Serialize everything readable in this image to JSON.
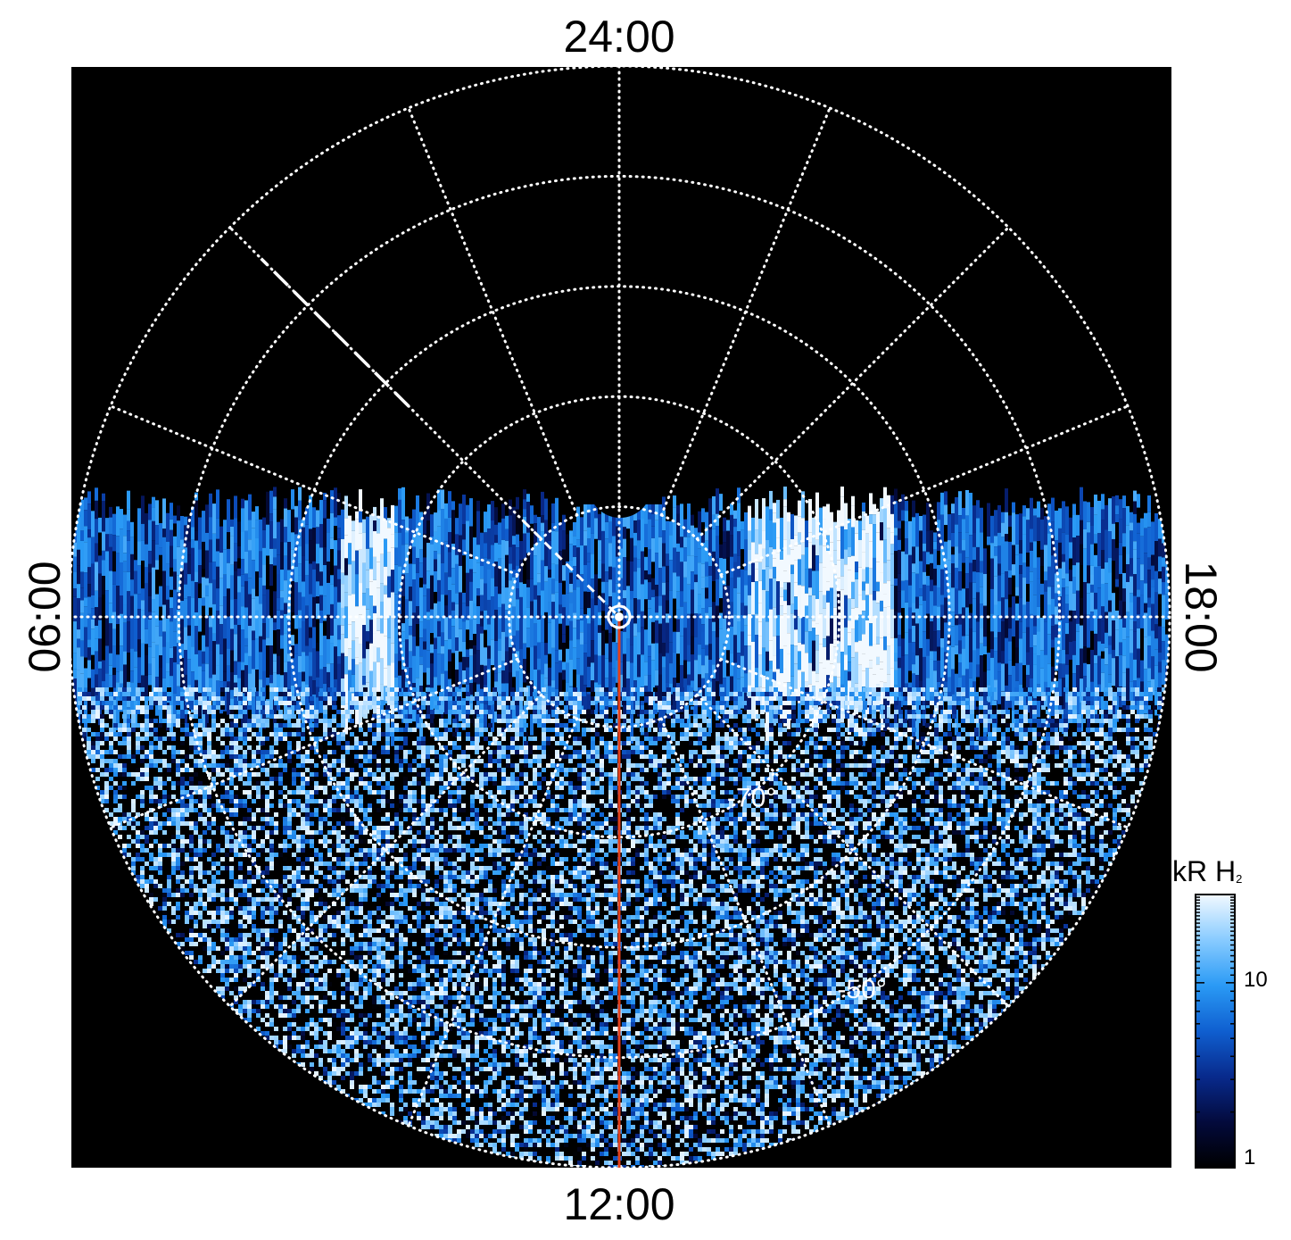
{
  "chart_data": {
    "type": "heatmap",
    "projection": "polar",
    "hemisphere": "south",
    "local_time_labels": {
      "top": "24:00",
      "left": "06:00",
      "bottom": "12:00",
      "right": "18:00"
    },
    "latitude_labels": [
      "-70°",
      "-50°"
    ],
    "latitude_circles_deg": [
      -40,
      -50,
      -60,
      -70,
      -80,
      -89
    ],
    "local_time_grid_hours": [
      0,
      1.5,
      3,
      4.5,
      6,
      7.5,
      9,
      10.5,
      12,
      13.5,
      15,
      16.5,
      18,
      19.5,
      21,
      22.5
    ],
    "dashed_meridian_hour": 3,
    "red_meridian_hour": 12,
    "grid": true,
    "colorbar": {
      "title": "kR H",
      "title_subscript": "2",
      "scale": "log",
      "range": [
        1,
        30
      ],
      "tick_labels": [
        "1",
        "10"
      ],
      "colors": [
        "#000000",
        "#030a3c",
        "#082a8c",
        "#0f5fd0",
        "#2a9af5",
        "#88cbff",
        "#f2f9ff"
      ]
    },
    "emission_regions": [
      {
        "description_value": "bright band",
        "local_time_start": 18.2,
        "local_time_end": 19.6,
        "intensity_kR": 25
      },
      {
        "description_value": "bright band",
        "local_time_start": 4.6,
        "local_time_end": 5.6,
        "intensity_kR": 22
      }
    ]
  }
}
